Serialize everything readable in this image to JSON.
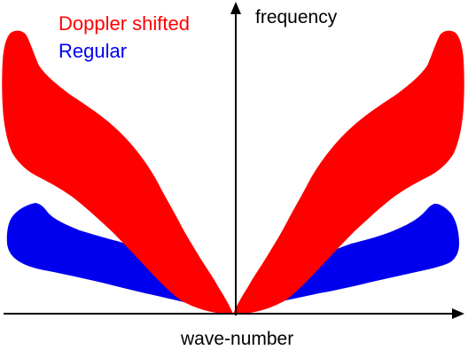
{
  "legend": {
    "doppler_label": "Doppler shifted",
    "regular_label": "Regular"
  },
  "axes": {
    "y_label": "frequency",
    "x_label": "wave-number"
  },
  "colors": {
    "doppler": "#ff0000",
    "regular": "#0000ee",
    "axis": "#000000"
  },
  "icons": {
    "y_arrowhead": "arrow-up-icon",
    "x_arrowhead": "arrow-right-icon"
  }
}
